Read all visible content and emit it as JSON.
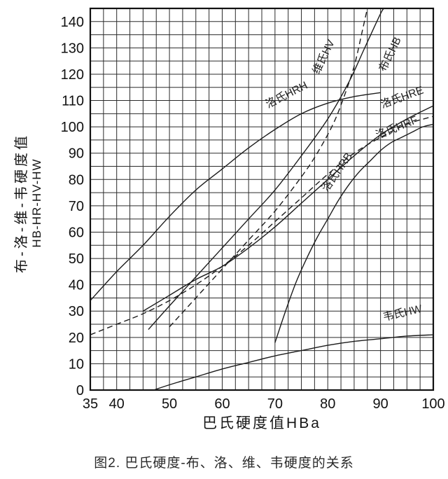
{
  "caption": "图2. 巴氏硬度-布、洛、维、韦硬度的关系",
  "colors": {
    "line": "#1c1c1c",
    "grid": "#2b2b2b",
    "border": "#111111",
    "text": "#111111",
    "curve_label": "#222222"
  },
  "chart_data": {
    "type": "line",
    "title": "",
    "xlabel": "巴氏硬度值HBa",
    "ylabel_line1": "布-洛-维-韦硬度值",
    "ylabel_line2": "HB-HR-HV-HW",
    "xlim": [
      35,
      100
    ],
    "ylim": [
      0,
      145
    ],
    "x_tick_labels": [
      35,
      40,
      50,
      60,
      70,
      80,
      90,
      100
    ],
    "y_tick_labels": [
      0,
      10,
      20,
      30,
      40,
      50,
      60,
      70,
      80,
      90,
      100,
      110,
      120,
      130,
      140
    ],
    "x_grid_step": 2.5,
    "y_grid_step": 5,
    "grid": true,
    "legend_position": "inline-curve-labels",
    "series": [
      {
        "name": "洛氏HRH",
        "scale": "HRH",
        "line": "solid",
        "points": [
          [
            35,
            34
          ],
          [
            40,
            45
          ],
          [
            45,
            55
          ],
          [
            50,
            66
          ],
          [
            55,
            76
          ],
          [
            60,
            84
          ],
          [
            65,
            92
          ],
          [
            70,
            99
          ],
          [
            75,
            105
          ],
          [
            80,
            109
          ],
          [
            85,
            111.5
          ],
          [
            90,
            113
          ]
        ],
        "label_pos": {
          "x": 72.5,
          "y": 111,
          "rot": -27
        }
      },
      {
        "name": "洛氏HRE",
        "scale": "HRE",
        "line": "solid",
        "points": [
          [
            45,
            30
          ],
          [
            50,
            36
          ],
          [
            55,
            42
          ],
          [
            60,
            47
          ],
          [
            65,
            54
          ],
          [
            70,
            62
          ],
          [
            75,
            71
          ],
          [
            80,
            80
          ],
          [
            85,
            89
          ],
          [
            90,
            97
          ],
          [
            95,
            103
          ],
          [
            100,
            108
          ]
        ],
        "label_pos": {
          "x": 94.3,
          "y": 110,
          "rot": -20
        }
      },
      {
        "name": "洛氏HRF",
        "scale": "HRF",
        "line": "dashed",
        "points": [
          [
            35,
            21
          ],
          [
            40,
            25
          ],
          [
            45,
            29
          ],
          [
            50,
            34
          ],
          [
            55,
            40
          ],
          [
            60,
            47
          ],
          [
            65,
            55
          ],
          [
            70,
            64
          ],
          [
            75,
            73
          ],
          [
            80,
            82
          ],
          [
            85,
            90
          ],
          [
            90,
            96
          ],
          [
            95,
            101
          ],
          [
            100,
            104
          ]
        ],
        "label_pos": {
          "x": 93.3,
          "y": 98.5,
          "rot": -22
        }
      },
      {
        "name": "洛氏HRB",
        "scale": "HRB",
        "line": "solid",
        "points": [
          [
            70,
            18
          ],
          [
            72,
            30
          ],
          [
            74,
            41
          ],
          [
            76,
            50
          ],
          [
            78,
            58
          ],
          [
            80,
            65
          ],
          [
            82,
            72
          ],
          [
            84,
            78
          ],
          [
            86,
            83
          ],
          [
            88,
            87
          ],
          [
            90,
            91
          ],
          [
            92,
            94
          ],
          [
            94,
            96
          ],
          [
            96,
            98
          ],
          [
            98,
            100
          ],
          [
            100,
            101
          ]
        ],
        "label_pos": {
          "x": 82.3,
          "y": 82,
          "rot": -55
        }
      },
      {
        "name": "布氏HB",
        "scale": "HB",
        "line": "solid",
        "points": [
          [
            46,
            23
          ],
          [
            50,
            32
          ],
          [
            55,
            43
          ],
          [
            60,
            54
          ],
          [
            65,
            65
          ],
          [
            70,
            76
          ],
          [
            75,
            89
          ],
          [
            80,
            103
          ],
          [
            84,
            117
          ],
          [
            87,
            130
          ],
          [
            90,
            143
          ],
          [
            90.7,
            145
          ]
        ],
        "label_pos": {
          "x": 92.4,
          "y": 127,
          "rot": -64
        }
      },
      {
        "name": "维氏HV",
        "scale": "HV",
        "line": "dashed",
        "points": [
          [
            50,
            24
          ],
          [
            55,
            35
          ],
          [
            60,
            46
          ],
          [
            65,
            57
          ],
          [
            70,
            68
          ],
          [
            75,
            81
          ],
          [
            78,
            90
          ],
          [
            81,
            101
          ],
          [
            83,
            111
          ],
          [
            85,
            123
          ],
          [
            86.5,
            136
          ],
          [
            87.5,
            145
          ]
        ],
        "label_pos": {
          "x": 79.8,
          "y": 126,
          "rot": -64
        }
      },
      {
        "name": "韦氏HW",
        "scale": "HW",
        "line": "solid",
        "points": [
          [
            47,
            0
          ],
          [
            50,
            2
          ],
          [
            55,
            5
          ],
          [
            60,
            8
          ],
          [
            65,
            10.5
          ],
          [
            70,
            13
          ],
          [
            75,
            15
          ],
          [
            80,
            17
          ],
          [
            85,
            18.5
          ],
          [
            90,
            19.5
          ],
          [
            95,
            20.5
          ],
          [
            100,
            21
          ]
        ],
        "label_pos": {
          "x": 94.3,
          "y": 28,
          "rot": -13
        }
      }
    ]
  }
}
